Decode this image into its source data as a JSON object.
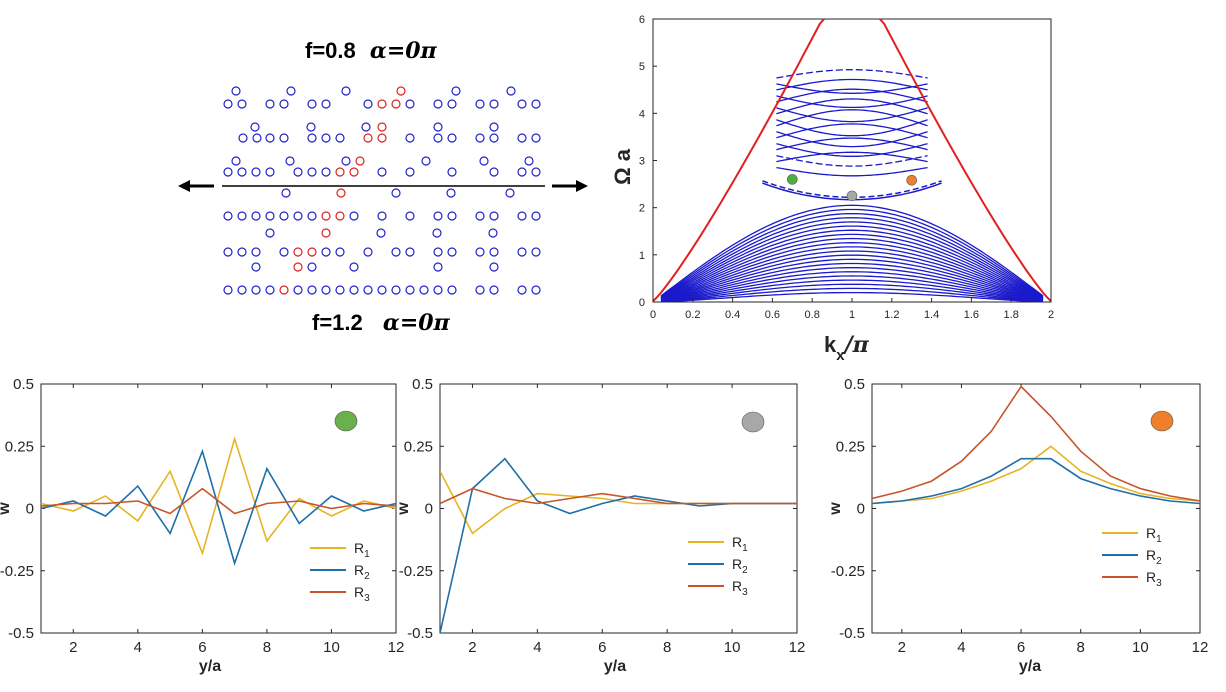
{
  "lattice": {
    "top_label": {
      "f": "f=0.8",
      "alpha": "α=0π"
    },
    "bottom_label": {
      "f": "f=1.2",
      "alpha": "α=0π"
    },
    "colors": {
      "site": "#2222cc",
      "defect": "#dd2222"
    }
  },
  "chart_data": [
    {
      "id": "dispersion",
      "type": "line",
      "xlabel_main": "k",
      "xlabel_sub": "x",
      "xlabel_tail": "/π",
      "ylabel": "Ω a",
      "xlim": [
        0,
        2
      ],
      "ylim": [
        0,
        6
      ],
      "xticks": [
        "0",
        "0.2",
        "0.4",
        "0.6",
        "0.8",
        "1",
        "1.2",
        "1.4",
        "1.6",
        "1.8",
        "2"
      ],
      "yticks": [
        "0",
        "1",
        "2",
        "3",
        "4",
        "5",
        "6"
      ],
      "colors": {
        "bands": "#1a1acc",
        "lightcone": "#e02020"
      },
      "markers": [
        {
          "name": "green",
          "kx": 0.7,
          "omega": 2.6,
          "color": "#4caf3e"
        },
        {
          "name": "gray",
          "kx": 1.0,
          "omega": 2.25,
          "color": "#a8a8a8"
        },
        {
          "name": "orange",
          "kx": 1.3,
          "omega": 2.58,
          "color": "#f07f2a"
        }
      ]
    },
    {
      "id": "mode-green",
      "type": "line",
      "xlabel": "y/a",
      "ylabel": "w",
      "xlim": [
        1,
        12
      ],
      "ylim": [
        -0.5,
        0.5
      ],
      "xticks": [
        "2",
        "4",
        "6",
        "8",
        "10",
        "12"
      ],
      "yticks": [
        "0.5",
        "0.25",
        "0",
        "-0.25",
        "-0.5"
      ],
      "x": [
        1,
        2,
        3,
        4,
        5,
        6,
        7,
        8,
        9,
        10,
        11,
        12
      ],
      "series": [
        {
          "name": "R1",
          "label": "R",
          "sub": "1",
          "color": "#e6b422",
          "values": [
            0.02,
            -0.01,
            0.05,
            -0.05,
            0.15,
            -0.18,
            0.28,
            -0.13,
            0.04,
            -0.03,
            0.03,
            0.0
          ]
        },
        {
          "name": "R2",
          "label": "R",
          "sub": "2",
          "color": "#1f6fa8",
          "values": [
            0.0,
            0.03,
            -0.03,
            0.09,
            -0.1,
            0.23,
            -0.22,
            0.16,
            -0.06,
            0.05,
            -0.01,
            0.02
          ]
        },
        {
          "name": "R3",
          "label": "R",
          "sub": "3",
          "color": "#c8552a",
          "values": [
            0.01,
            0.02,
            0.02,
            0.03,
            -0.02,
            0.08,
            -0.02,
            0.02,
            0.03,
            0.0,
            0.02,
            0.01
          ]
        }
      ],
      "badge_color": "#6ab04c"
    },
    {
      "id": "mode-gray",
      "type": "line",
      "xlabel": "y/a",
      "ylabel": "w",
      "xlim": [
        1,
        12
      ],
      "ylim": [
        -0.5,
        0.5
      ],
      "xticks": [
        "2",
        "4",
        "6",
        "8",
        "10",
        "12"
      ],
      "yticks": [
        "0.5",
        "0.25",
        "0",
        "-0.25",
        "-0.5"
      ],
      "x": [
        1,
        2,
        3,
        4,
        5,
        6,
        7,
        8,
        9,
        10,
        11,
        12
      ],
      "series": [
        {
          "name": "R1",
          "label": "R",
          "sub": "1",
          "color": "#e6b422",
          "values": [
            0.15,
            -0.1,
            0.0,
            0.06,
            0.05,
            0.04,
            0.02,
            0.02,
            0.02,
            0.02,
            0.02,
            0.02
          ]
        },
        {
          "name": "R2",
          "label": "R",
          "sub": "2",
          "color": "#1f6fa8",
          "values": [
            -0.5,
            0.08,
            0.2,
            0.03,
            -0.02,
            0.02,
            0.05,
            0.03,
            0.01,
            0.02,
            0.02,
            0.02
          ]
        },
        {
          "name": "R3",
          "label": "R",
          "sub": "3",
          "color": "#c8552a",
          "values": [
            0.02,
            0.08,
            0.04,
            0.02,
            0.04,
            0.06,
            0.04,
            0.02,
            0.02,
            0.02,
            0.02,
            0.02
          ]
        }
      ],
      "badge_color": "#a8a8a8"
    },
    {
      "id": "mode-orange",
      "type": "line",
      "xlabel": "y/a",
      "ylabel": "w",
      "xlim": [
        1,
        12
      ],
      "ylim": [
        -0.5,
        0.5
      ],
      "xticks": [
        "2",
        "4",
        "6",
        "8",
        "10",
        "12"
      ],
      "yticks": [
        "0.5",
        "0.25",
        "0",
        "-0.25",
        "-0.5"
      ],
      "x": [
        1,
        2,
        3,
        4,
        5,
        6,
        7,
        8,
        9,
        10,
        11,
        12
      ],
      "series": [
        {
          "name": "R1",
          "label": "R",
          "sub": "1",
          "color": "#e6b422",
          "values": [
            0.02,
            0.03,
            0.04,
            0.07,
            0.11,
            0.16,
            0.25,
            0.15,
            0.1,
            0.06,
            0.04,
            0.03
          ]
        },
        {
          "name": "R2",
          "label": "R",
          "sub": "2",
          "color": "#1f6fa8",
          "values": [
            0.02,
            0.03,
            0.05,
            0.08,
            0.13,
            0.2,
            0.2,
            0.12,
            0.08,
            0.05,
            0.03,
            0.02
          ]
        },
        {
          "name": "R3",
          "label": "R",
          "sub": "3",
          "color": "#c8552a",
          "values": [
            0.04,
            0.07,
            0.11,
            0.19,
            0.31,
            0.49,
            0.37,
            0.23,
            0.13,
            0.08,
            0.05,
            0.03
          ]
        }
      ],
      "badge_color": "#f07f2a"
    }
  ]
}
